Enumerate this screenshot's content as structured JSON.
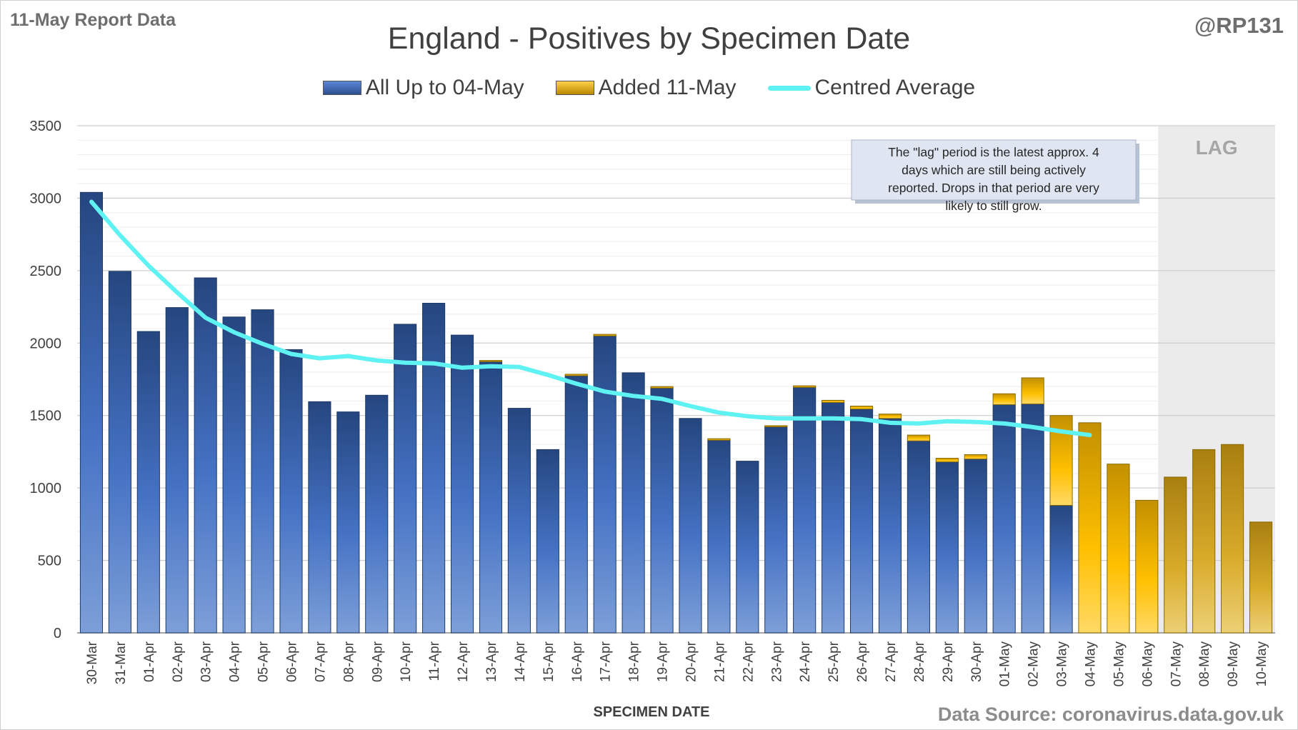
{
  "header": {
    "report_label": "11-May Report Data",
    "handle": "@RP131",
    "source": "Data Source: coronavirus.data.gov.uk"
  },
  "chart_data": {
    "type": "bar",
    "title": "England - Positives by Specimen Date",
    "xlabel": "SPECIMEN DATE",
    "ylabel": "",
    "ylim": [
      0,
      3500
    ],
    "yticks": [
      0,
      500,
      1000,
      1500,
      2000,
      2500,
      3000,
      3500
    ],
    "grid": true,
    "legend_position": "top-center",
    "categories": [
      "30-Mar",
      "31-Mar",
      "01-Apr",
      "02-Apr",
      "03-Apr",
      "04-Apr",
      "05-Apr",
      "06-Apr",
      "07-Apr",
      "08-Apr",
      "09-Apr",
      "10-Apr",
      "11-Apr",
      "12-Apr",
      "13-Apr",
      "14-Apr",
      "15-Apr",
      "16-Apr",
      "17-Apr",
      "18-Apr",
      "19-Apr",
      "20-Apr",
      "21-Apr",
      "22-Apr",
      "23-Apr",
      "24-Apr",
      "25-Apr",
      "26-Apr",
      "27-Apr",
      "28-Apr",
      "29-Apr",
      "30-Apr",
      "01-May",
      "02-May",
      "03-May",
      "04-May",
      "05-May",
      "06-May",
      "07-May",
      "08-May",
      "09-May",
      "10-May"
    ],
    "series": [
      {
        "name": "All Up to 04-May",
        "color": "#3e6db5",
        "values": [
          3040,
          2495,
          2080,
          2245,
          2450,
          2180,
          2230,
          1955,
          1595,
          1525,
          1640,
          2130,
          2275,
          2055,
          1875,
          1550,
          1265,
          1775,
          2050,
          1795,
          1690,
          1480,
          1330,
          1185,
          1425,
          1695,
          1590,
          1545,
          1480,
          1325,
          1180,
          1200,
          1575,
          1580,
          880,
          0,
          0,
          0,
          0,
          0,
          0,
          0
        ]
      },
      {
        "name": "Added 11-May",
        "color": "#f2b705",
        "values": [
          0,
          0,
          0,
          0,
          0,
          0,
          0,
          0,
          0,
          0,
          0,
          0,
          0,
          0,
          5,
          0,
          0,
          10,
          10,
          0,
          10,
          0,
          10,
          0,
          5,
          10,
          15,
          20,
          30,
          40,
          25,
          30,
          75,
          180,
          620,
          1450,
          1165,
          915,
          1075,
          1265,
          1300,
          765
        ]
      },
      {
        "name": "Centred Average",
        "color": "#5ff2f2",
        "type": "line",
        "values": [
          2975,
          2745,
          2535,
          2350,
          2175,
          2075,
          1995,
          1925,
          1895,
          1910,
          1880,
          1865,
          1860,
          1830,
          1840,
          1835,
          1780,
          1720,
          1665,
          1635,
          1615,
          1565,
          1520,
          1495,
          1480,
          1480,
          1480,
          1475,
          1450,
          1445,
          1460,
          1455,
          1445,
          1420,
          1390,
          1365,
          null,
          null,
          null,
          null,
          null,
          null
        ]
      }
    ],
    "lag_label": "LAG",
    "lag_start": "07-May",
    "lag_end": "10-May",
    "annotation": "The \"lag\" period is the latest approx. 4 days which are still being actively reported. Drops in that period are very likely to still grow."
  }
}
